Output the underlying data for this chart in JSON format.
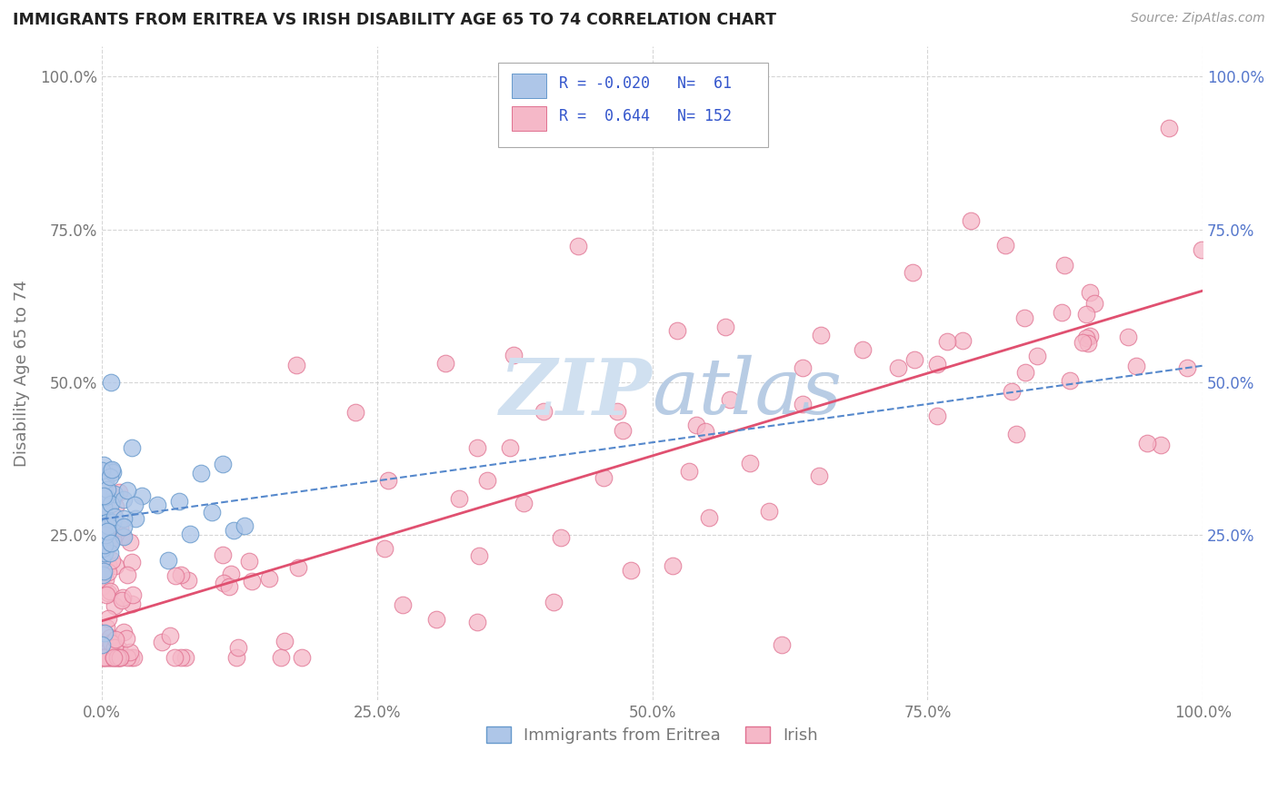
{
  "title": "IMMIGRANTS FROM ERITREA VS IRISH DISABILITY AGE 65 TO 74 CORRELATION CHART",
  "source": "Source: ZipAtlas.com",
  "ylabel": "Disability Age 65 to 74",
  "xlim": [
    0.0,
    1.0
  ],
  "ylim": [
    -0.02,
    1.05
  ],
  "xticks": [
    0.0,
    0.25,
    0.5,
    0.75,
    1.0
  ],
  "xticklabels": [
    "0.0%",
    "25.0%",
    "50.0%",
    "75.0%",
    "100.0%"
  ],
  "yticks": [
    0.25,
    0.5,
    0.75,
    1.0
  ],
  "yticklabels": [
    "25.0%",
    "50.0%",
    "75.0%",
    "100.0%"
  ],
  "blue_R": -0.02,
  "blue_N": 61,
  "pink_R": 0.644,
  "pink_N": 152,
  "blue_color": "#aec6e8",
  "pink_color": "#f5b8c8",
  "blue_edge": "#6699cc",
  "pink_edge": "#e07090",
  "trendline_blue_color": "#5588cc",
  "trendline_pink_color": "#e05070",
  "background_color": "#ffffff",
  "grid_color": "#cccccc",
  "legend_R_color": "#3355cc",
  "title_color": "#222222",
  "source_color": "#999999",
  "watermark_color": "#d0e0f0",
  "tick_color": "#777777",
  "right_tick_color": "#5577cc"
}
